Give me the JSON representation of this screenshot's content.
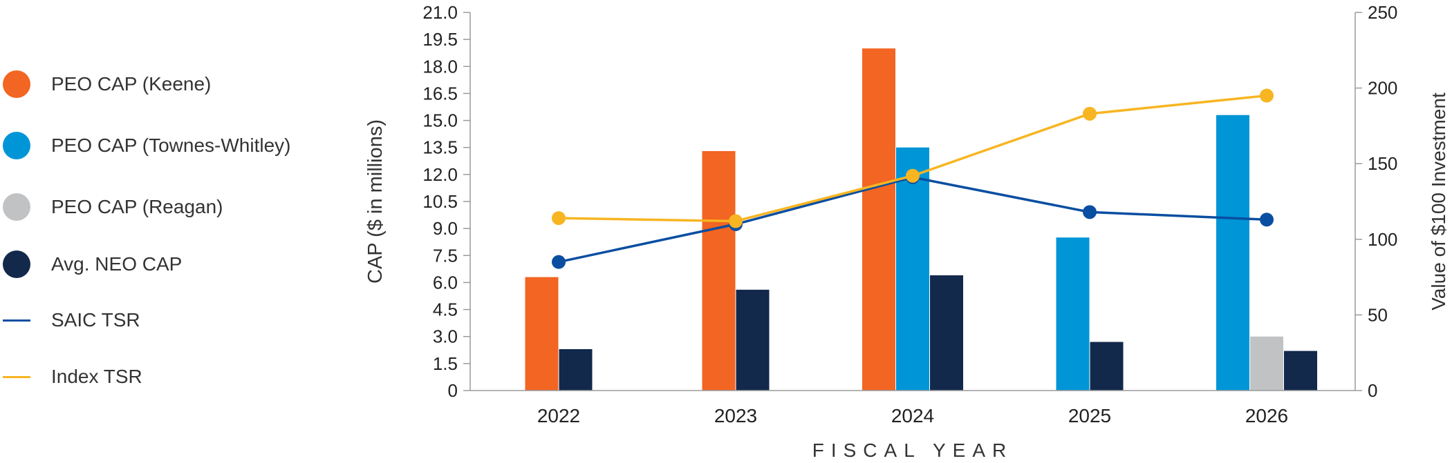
{
  "chart_data": {
    "type": "bar",
    "categories": [
      "2022",
      "2023",
      "2024",
      "2025",
      "2026"
    ],
    "xlabel": "FISCAL YEAR",
    "ylabel": "CAP ($ in millions)",
    "ylabel_right": "Value of $100 Investment",
    "ylim": [
      0,
      21
    ],
    "yticks": [
      "0",
      "1.5",
      "3.0",
      "4.5",
      "6.0",
      "7.5",
      "9.0",
      "10.5",
      "12.0",
      "13.5",
      "15.0",
      "16.5",
      "18.0",
      "19.5",
      "21.0"
    ],
    "ylim_right": [
      0,
      250
    ],
    "yticks_right": [
      "0",
      "50",
      "100",
      "150",
      "200",
      "250"
    ],
    "legend_position": "left",
    "series": [
      {
        "name": "PEO CAP (Keene)",
        "kind": "bar",
        "axis": "left",
        "color": "#f26522",
        "values": [
          6.3,
          13.3,
          19.0,
          null,
          null
        ]
      },
      {
        "name": "PEO CAP (Townes-Whitley)",
        "kind": "bar",
        "axis": "left",
        "color": "#0095d6",
        "values": [
          null,
          null,
          13.5,
          8.5,
          15.3
        ]
      },
      {
        "name": "PEO CAP (Reagan)",
        "kind": "bar",
        "axis": "left",
        "color": "#c1c2c4",
        "values": [
          null,
          null,
          null,
          null,
          3.0
        ]
      },
      {
        "name": "Avg. NEO CAP",
        "kind": "bar",
        "axis": "left",
        "color": "#13294b",
        "values": [
          2.3,
          5.6,
          6.4,
          2.7,
          2.2
        ]
      },
      {
        "name": "SAIC TSR",
        "kind": "line",
        "axis": "right",
        "color": "#0a4ea1",
        "values": [
          85,
          110,
          141,
          118,
          113
        ]
      },
      {
        "name": "Index TSR",
        "kind": "line",
        "axis": "right",
        "color": "#f7b522",
        "values": [
          114,
          112,
          142,
          183,
          195
        ]
      }
    ]
  }
}
